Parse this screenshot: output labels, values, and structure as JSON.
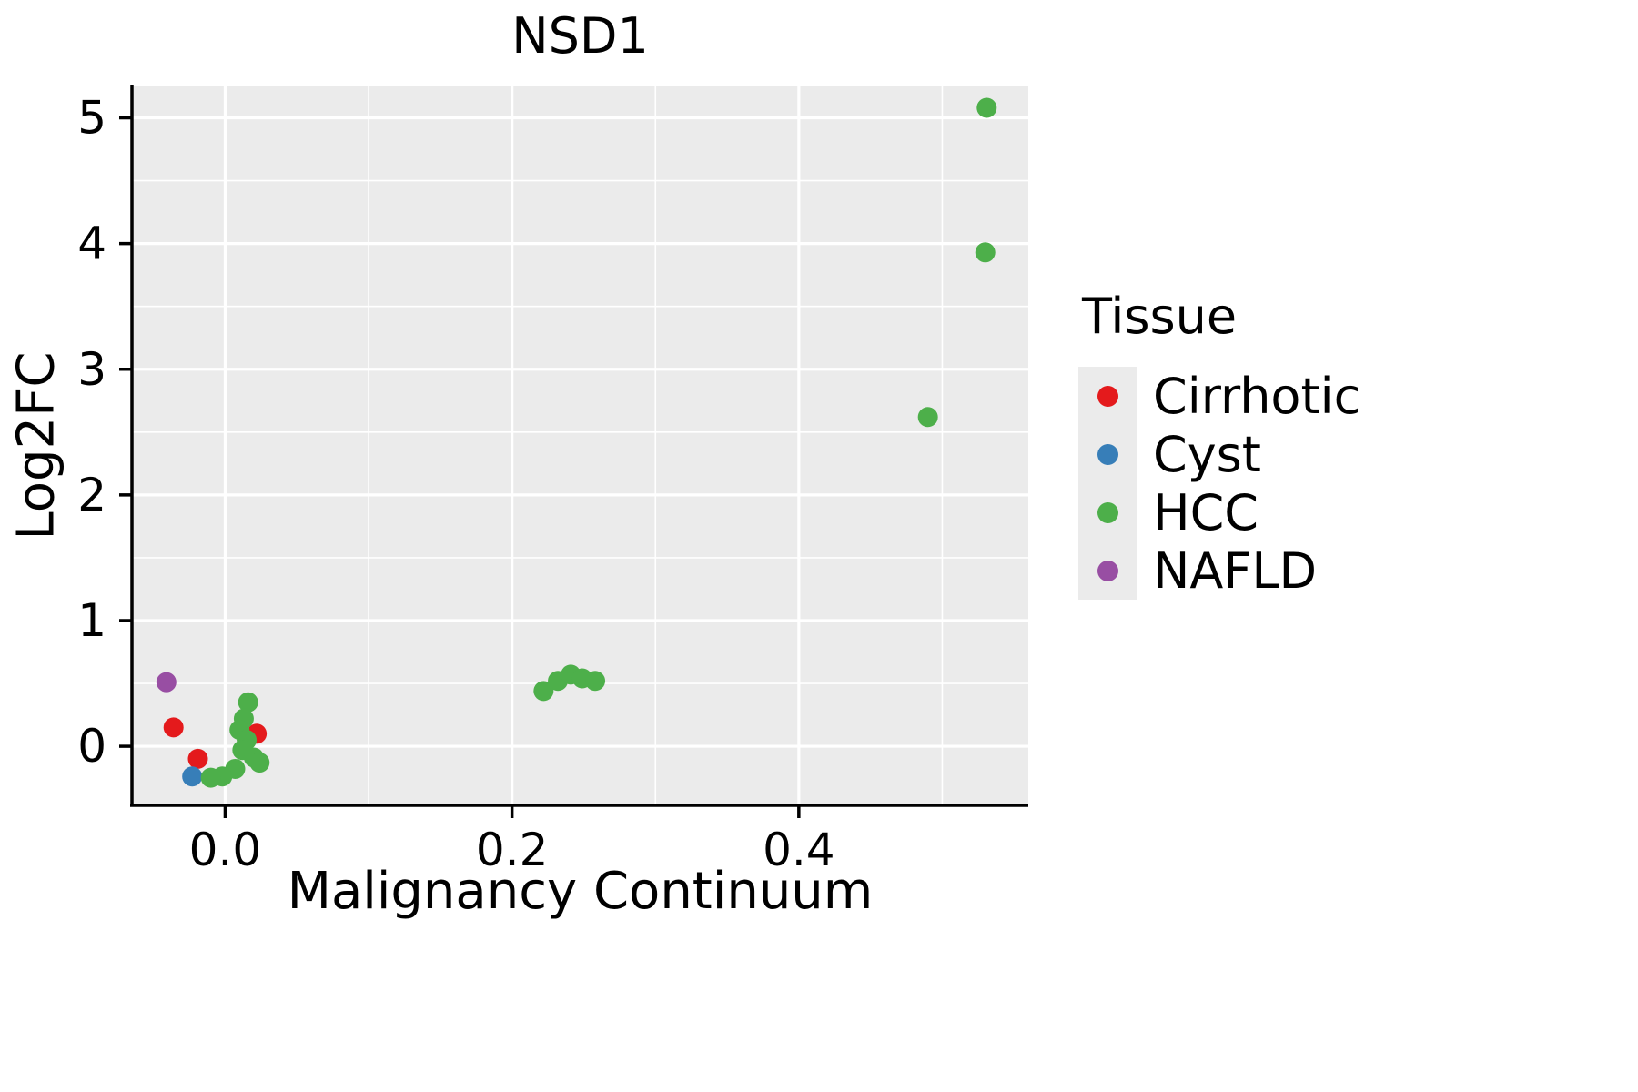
{
  "chart_data": {
    "type": "scatter",
    "title": "NSD1",
    "xlabel": "Malignancy Continuum",
    "ylabel": "Log2FC",
    "xlim": [
      -0.065,
      0.56
    ],
    "ylim": [
      -0.47,
      5.25
    ],
    "grid": true,
    "panel_background": "#EBEBEB",
    "grid_color": "#FFFFFF",
    "axis_color": "#000000",
    "text_color": "#000000",
    "x_ticks": [
      {
        "value": 0.0,
        "label": "0.0"
      },
      {
        "value": 0.2,
        "label": "0.2"
      },
      {
        "value": 0.4,
        "label": "0.4"
      }
    ],
    "y_ticks": [
      {
        "value": 0,
        "label": "0"
      },
      {
        "value": 1,
        "label": "1"
      },
      {
        "value": 2,
        "label": "2"
      },
      {
        "value": 3,
        "label": "3"
      },
      {
        "value": 4,
        "label": "4"
      },
      {
        "value": 5,
        "label": "5"
      }
    ],
    "x_minor_ticks": [
      0.1,
      0.3,
      0.5
    ],
    "y_minor_ticks": [
      0.5,
      1.5,
      2.5,
      3.5,
      4.5
    ],
    "legend": {
      "title": "Tissue",
      "position": "right",
      "items": [
        {
          "name": "Cirrhotic",
          "color": "#E41A1C"
        },
        {
          "name": "Cyst",
          "color": "#377EB8"
        },
        {
          "name": "HCC",
          "color": "#4DAF4A"
        },
        {
          "name": "NAFLD",
          "color": "#984EA3"
        }
      ]
    },
    "series": [
      {
        "name": "Cirrhotic",
        "color": "#E41A1C",
        "points": [
          [
            -0.036,
            0.15
          ],
          [
            -0.019,
            -0.1
          ],
          [
            0.022,
            0.1
          ]
        ]
      },
      {
        "name": "Cyst",
        "color": "#377EB8",
        "points": [
          [
            -0.023,
            -0.24
          ]
        ]
      },
      {
        "name": "HCC",
        "color": "#4DAF4A",
        "points": [
          [
            0.531,
            5.08
          ],
          [
            0.53,
            3.93
          ],
          [
            0.49,
            2.62
          ],
          [
            0.222,
            0.44
          ],
          [
            0.232,
            0.52
          ],
          [
            0.241,
            0.57
          ],
          [
            0.249,
            0.54
          ],
          [
            0.258,
            0.52
          ],
          [
            0.016,
            0.35
          ],
          [
            0.013,
            0.22
          ],
          [
            0.01,
            0.13
          ],
          [
            0.015,
            0.05
          ],
          [
            0.012,
            -0.03
          ],
          [
            0.02,
            -0.09
          ],
          [
            0.024,
            -0.13
          ],
          [
            0.007,
            -0.18
          ],
          [
            -0.002,
            -0.24
          ],
          [
            -0.01,
            -0.25
          ]
        ]
      },
      {
        "name": "NAFLD",
        "color": "#984EA3",
        "points": [
          [
            -0.041,
            0.51
          ]
        ]
      }
    ]
  }
}
